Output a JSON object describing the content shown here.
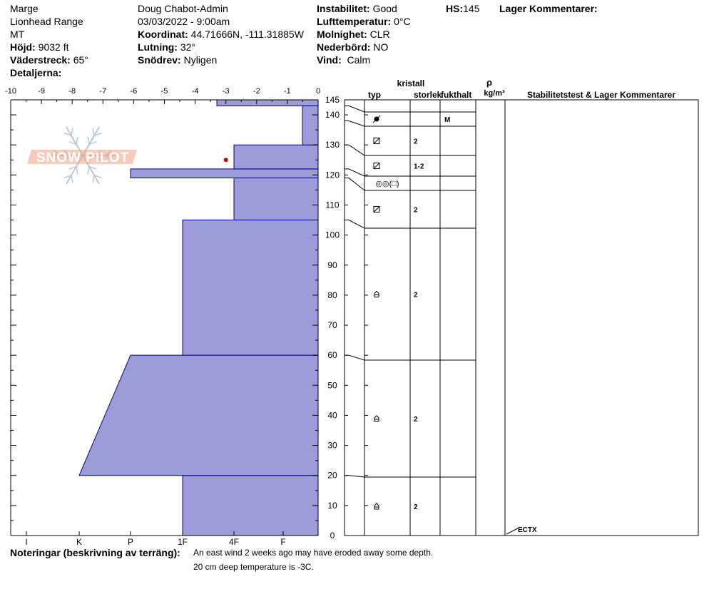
{
  "header": {
    "name": "Marge",
    "range": "Lionhead Range",
    "state": "MT",
    "elevation_label": "Höjd:",
    "elevation": "9032 ft",
    "aspect_label": "Väderstreck:",
    "aspect": "65°",
    "details_label": "Detaljerna:",
    "observer": "Doug Chabot-Admin",
    "datetime": "03/03/2022 - 9:00am",
    "coords_label": "Koordinat:",
    "coords": "44.71666N, -111.31885W",
    "slope_label": "Lutning:",
    "slope": "32°",
    "wind_loading_label": "Snödrev:",
    "wind_loading": "Nyligen",
    "stability_label": "Instabilitet:",
    "stability": "Good",
    "air_temp_label": "Lufttemperatur:",
    "air_temp": "0°C",
    "sky_label": "Molnighet:",
    "sky": "CLR",
    "precip_label": "Nederbörd:",
    "precip": "NO",
    "wind_label": "Vind:",
    "wind": "Calm",
    "hs_label": "HS:",
    "hs": "145",
    "layer_comments_label": "Lager Kommentarer:"
  },
  "logo": {
    "text": "SNOW PILOT"
  },
  "chart_data": {
    "type": "snow-profile",
    "temp_axis": {
      "min": -10,
      "max": 0,
      "ticks": [
        "-10",
        "-9",
        "-8",
        "-7",
        "-6",
        "-5",
        "-4",
        "-3",
        "-2",
        "-1",
        "0"
      ]
    },
    "hardness_axis": {
      "ticks": [
        "I",
        "K",
        "P",
        "1F",
        "4F",
        "F"
      ],
      "scale": [
        "F",
        "4F",
        "1F",
        "P",
        "K",
        "I"
      ]
    },
    "height_axis": {
      "min": 0,
      "max": 145,
      "ticks": [
        "0",
        "10",
        "20",
        "30",
        "40",
        "50",
        "60",
        "70",
        "80",
        "90",
        "100",
        "110",
        "120",
        "130",
        "140",
        "145"
      ]
    },
    "hardness_layers": [
      {
        "bottom": 0,
        "top": 20,
        "hardness": "1F"
      },
      {
        "bottom": 20,
        "top": 60,
        "hardness_bottom": "K",
        "hardness_top": "P"
      },
      {
        "bottom": 60,
        "top": 105,
        "hardness": "1F"
      },
      {
        "bottom": 105,
        "top": 119,
        "hardness": "4F"
      },
      {
        "bottom": 119,
        "top": 122,
        "hardness": "P"
      },
      {
        "bottom": 122,
        "top": 130,
        "hardness": "4F"
      },
      {
        "bottom": 130,
        "top": 143,
        "hardness": "F-"
      },
      {
        "bottom": 143,
        "top": 145,
        "hardness": "F+"
      }
    ],
    "temperature_points": [
      {
        "depth": 20,
        "temp": -3
      }
    ]
  },
  "grain_table": {
    "headers": {
      "crystal": "kristall",
      "type": "typ",
      "size": "storlek",
      "moisture": "fukthalt",
      "rho": "ρ",
      "density_unit": "kg/m³",
      "comments": "Stabilitetstest & Lager Kommentarer"
    },
    "layers": [
      {
        "bottom": 143,
        "top": 145,
        "type": "",
        "size": "",
        "moisture": ""
      },
      {
        "bottom": 138,
        "top": 143,
        "type": "wet-grain",
        "size": "",
        "moisture": "M"
      },
      {
        "bottom": 130,
        "top": 138,
        "type": "faceted",
        "size": "2",
        "moisture": ""
      },
      {
        "bottom": 122,
        "top": 130,
        "type": "faceted",
        "size": "1-2",
        "moisture": ""
      },
      {
        "bottom": 119,
        "top": 122,
        "type": "rounded-faceted",
        "size": "",
        "moisture": "",
        "type_text": "◎◎(□)"
      },
      {
        "bottom": 105,
        "top": 119,
        "type": "faceted",
        "size": "2",
        "moisture": ""
      },
      {
        "bottom": 60,
        "top": 105,
        "type": "depth-hoar",
        "size": "2",
        "moisture": ""
      },
      {
        "bottom": 20,
        "top": 60,
        "type": "depth-hoar",
        "size": "2",
        "moisture": ""
      },
      {
        "bottom": 0,
        "top": 20,
        "type": "depth-hoar",
        "size": "2",
        "moisture": ""
      }
    ],
    "stability_test": {
      "depth": 0,
      "label": "ECTX"
    }
  },
  "notes": {
    "label": "Noteringar (beskrivning av terräng):",
    "line1": "An east wind 2 weeks ago may have eroded away some depth.",
    "line2": "20 cm deep temperature is -3C."
  },
  "colors": {
    "fill": "#9c9cd8",
    "outline": "#00008b",
    "temp_dot": "#cc0000",
    "logo": "#f0a080",
    "flake": "#b8c8d8"
  }
}
